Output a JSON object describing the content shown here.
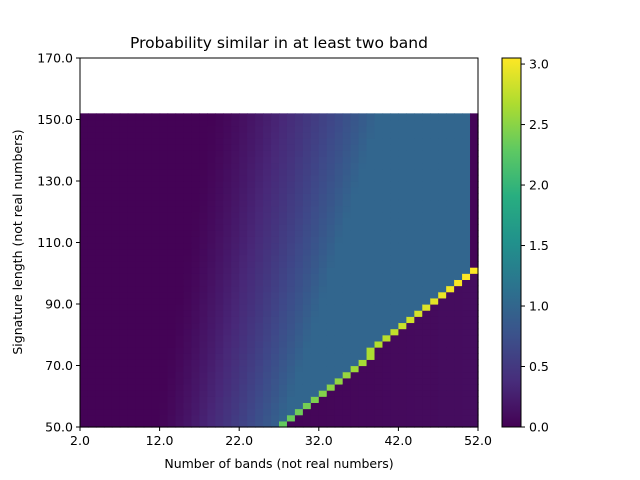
{
  "chart_data": {
    "type": "heatmap",
    "title": "Probability similar in at least two band",
    "xlabel": "Number of bands (not real numbers)",
    "ylabel": "Signature length (not real numbers)",
    "xlim": [
      2.0,
      52.0
    ],
    "ylim": [
      50.0,
      170.0
    ],
    "x_ticks": [
      "2.0",
      "12.0",
      "22.0",
      "32.0",
      "42.0",
      "52.0"
    ],
    "y_ticks": [
      "50.0",
      "70.0",
      "90.0",
      "110.0",
      "130.0",
      "150.0",
      "170.0"
    ],
    "data_extent": {
      "x": [
        2,
        52
      ],
      "y": [
        50,
        151
      ]
    },
    "colorbar": {
      "min": 0.0,
      "max": 3.05,
      "ticks": [
        "0.0",
        "0.5",
        "1.0",
        "1.5",
        "2.0",
        "2.5",
        "3.0"
      ],
      "colormap": "viridis"
    },
    "regions": {
      "left_zero": "near 0.0 for bands below ~15",
      "gradient": "rises from ~0.1 to ~0.9 across the transition band",
      "plateau": "~1.0 in the upper-right region",
      "diagonal_ridge": "from (27,50) to (50,98), values ~2.3 to ~3.05",
      "below_ridge": "~0.03 to ~0.1 under the diagonal"
    }
  }
}
